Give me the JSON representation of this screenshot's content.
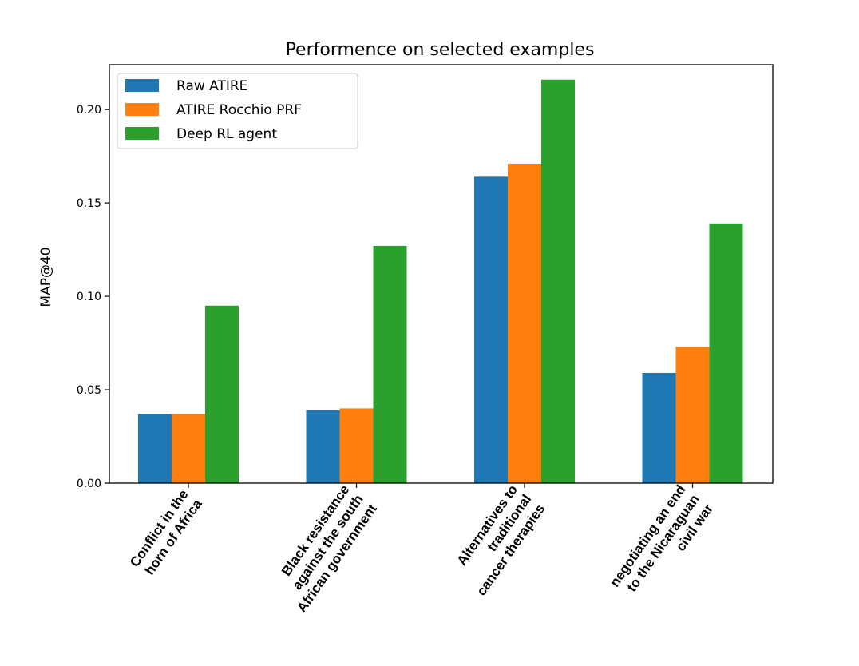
{
  "chart_data": {
    "type": "bar",
    "title": "Performence on selected examples",
    "xlabel": "",
    "ylabel": "MAP@40",
    "ylim": [
      0.0,
      0.224
    ],
    "yticks": [
      "0.00",
      "0.05",
      "0.10",
      "0.15",
      "0.20"
    ],
    "ytick_values": [
      0.0,
      0.05,
      0.1,
      0.15,
      0.2
    ],
    "grid": false,
    "legend_position": "top-left",
    "categories": [
      [
        "Conflict in the",
        "horn of Africa"
      ],
      [
        "Black resistance",
        "against the south",
        "African government"
      ],
      [
        "Alternatives to",
        "traditional",
        "cancer therapies"
      ],
      [
        "negotiating an end",
        "to the Nicaraguan",
        "civil war"
      ]
    ],
    "series": [
      {
        "name": "Raw ATIRE",
        "color": "#1f77b4",
        "values": [
          0.037,
          0.039,
          0.164,
          0.059
        ]
      },
      {
        "name": "ATIRE Rocchio PRF",
        "color": "#ff7f0e",
        "values": [
          0.037,
          0.04,
          0.171,
          0.073
        ]
      },
      {
        "name": "Deep RL agent",
        "color": "#2ca02c",
        "values": [
          0.095,
          0.127,
          0.216,
          0.139
        ]
      }
    ]
  }
}
